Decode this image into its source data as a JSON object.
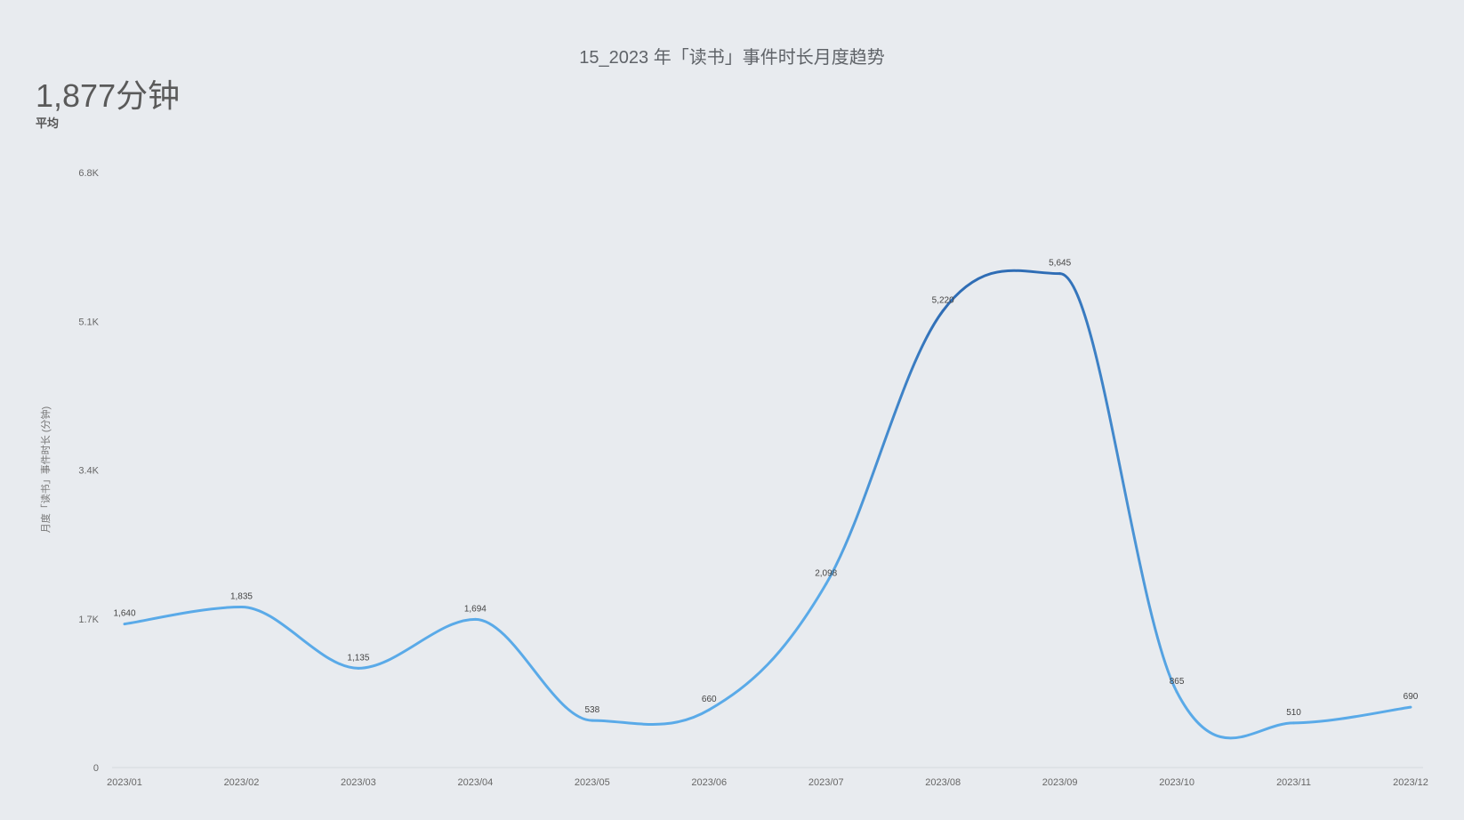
{
  "header": {
    "title": "15_2023 年「读书」事件时长月度趋势"
  },
  "kpi": {
    "value": "1,877分钟",
    "label": "平均"
  },
  "chart_data": {
    "type": "line",
    "title": "15_2023 年「读书」事件时长月度趋势",
    "xlabel": "",
    "ylabel": "月度「读书」事件时长 (分钟)",
    "categories": [
      "2023/01",
      "2023/02",
      "2023/03",
      "2023/04",
      "2023/05",
      "2023/06",
      "2023/07",
      "2023/08",
      "2023/09",
      "2023/10",
      "2023/11",
      "2023/12"
    ],
    "values": [
      1640,
      1835,
      1135,
      1694,
      538,
      660,
      2098,
      5220,
      5645,
      865,
      510,
      690
    ],
    "data_labels": [
      "1,640",
      "1,835",
      "1,135",
      "1,694",
      "538",
      "660",
      "2,098",
      "5,220",
      "5,645",
      "865",
      "510",
      "690"
    ],
    "ylim": [
      0,
      6800
    ],
    "yticks": [
      0,
      1700,
      3400,
      5100,
      6800
    ],
    "ytick_labels": [
      "0",
      "1.7K",
      "3.4K",
      "5.1K",
      "6.8K"
    ],
    "grid": false,
    "colors": {
      "line": "#5aaae8",
      "highlight": "#2f6db5"
    },
    "highlight_range": [
      7,
      8
    ]
  }
}
